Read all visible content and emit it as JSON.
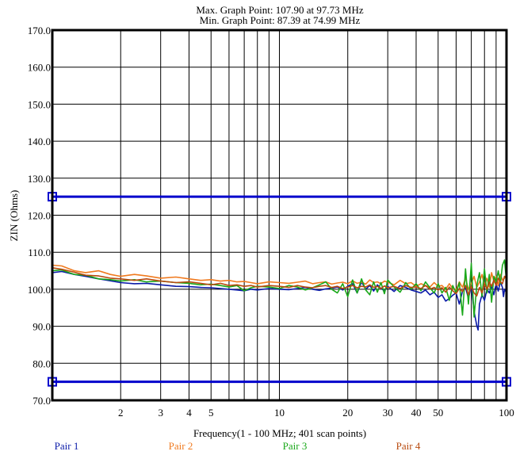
{
  "chart_data": {
    "type": "line",
    "title_lines": [
      "Max. Graph Point: 107.90 at 97.73 MHz",
      "Min. Graph Point: 87.39 at 74.99 MHz"
    ],
    "xlabel": "Frequency(1 - 100 MHz; 401 scan points)",
    "ylabel": "ZIN (Ohms)",
    "x_scale": "log",
    "xlim": [
      1,
      100
    ],
    "ylim": [
      70,
      170
    ],
    "x_ticks": [
      2,
      3,
      4,
      5,
      10,
      20,
      30,
      40,
      50,
      100
    ],
    "x_tick_labels": [
      "2",
      "3",
      "4",
      "5",
      "10",
      "20",
      "30",
      "40",
      "50",
      "100"
    ],
    "y_ticks": [
      70,
      80,
      90,
      100,
      110,
      120,
      130,
      140,
      150,
      160,
      170
    ],
    "y_tick_labels": [
      "70.0",
      "80.0",
      "90.0",
      "100.0",
      "110.0",
      "120.0",
      "130.0",
      "140.0",
      "150.0",
      "160.0",
      "170.0"
    ],
    "grid": true,
    "limit_lines": [
      {
        "y": 125,
        "color": "#0000cc"
      },
      {
        "y": 75,
        "color": "#0000cc"
      }
    ],
    "legend_position": "bottom",
    "series": [
      {
        "name": "Pair 1",
        "color": "#0a1aa8",
        "x": [
          1,
          1.1,
          1.25,
          1.4,
          1.6,
          1.8,
          2,
          2.3,
          2.6,
          3,
          3.5,
          4,
          4.5,
          5,
          5.5,
          6,
          6.5,
          7,
          7.5,
          8,
          9,
          10,
          11,
          12,
          13,
          14,
          15,
          16,
          17,
          18,
          19,
          20,
          21,
          22,
          23,
          24,
          25,
          26,
          27,
          28,
          29,
          30,
          32,
          34,
          36,
          38,
          40,
          42,
          44,
          46,
          48,
          50,
          52,
          54,
          56,
          58,
          60,
          62,
          64,
          66,
          68,
          70,
          72,
          74,
          75,
          76,
          78,
          80,
          82,
          84,
          86,
          88,
          90,
          92,
          94,
          96,
          97,
          98,
          100
        ],
        "y": [
          104.5,
          104.8,
          104.0,
          103.5,
          102.8,
          102.3,
          101.8,
          101.5,
          101.6,
          101.2,
          100.8,
          100.7,
          100.5,
          100.4,
          100.2,
          100.0,
          99.8,
          99.6,
          100.0,
          99.8,
          100.2,
          100.0,
          99.9,
          100.2,
          100.5,
          100.0,
          99.7,
          100.1,
          100.3,
          100.6,
          99.8,
          100.8,
          101.5,
          99.0,
          102.0,
          100.0,
          101.0,
          99.5,
          101.2,
          100.2,
          99.6,
          100.8,
          99.4,
          101.0,
          100.5,
          99.8,
          99.4,
          99.0,
          99.8,
          98.5,
          99.2,
          97.8,
          98.5,
          96.8,
          97.5,
          98.4,
          99.0,
          96.0,
          99.5,
          100.5,
          97.5,
          101.0,
          94.0,
          90.2,
          89.0,
          96.0,
          98.5,
          97.0,
          100.0,
          99.0,
          101.0,
          98.5,
          101.5,
          99.5,
          102.0,
          100.5,
          98.0,
          100.0,
          99.0
        ]
      },
      {
        "name": "Pair 2",
        "color": "#f07a1f",
        "x": [
          1,
          1.1,
          1.25,
          1.4,
          1.6,
          1.8,
          2,
          2.3,
          2.6,
          3,
          3.5,
          4,
          4.5,
          5,
          5.5,
          6,
          6.5,
          7,
          7.5,
          8,
          9,
          10,
          11,
          12,
          13,
          14,
          15,
          16,
          17,
          18,
          19,
          20,
          21,
          22,
          23,
          24,
          25,
          26,
          27,
          28,
          29,
          30,
          32,
          34,
          36,
          38,
          40,
          42,
          44,
          46,
          48,
          50,
          52,
          54,
          56,
          58,
          60,
          62,
          64,
          66,
          68,
          70,
          72,
          74,
          76,
          78,
          80,
          82,
          84,
          86,
          88,
          90,
          92,
          94,
          96,
          98,
          100
        ],
        "y": [
          106.5,
          106.3,
          105.0,
          104.5,
          105.0,
          104.0,
          103.5,
          104.0,
          103.6,
          103.0,
          103.3,
          102.8,
          102.4,
          102.6,
          102.2,
          102.4,
          102.0,
          102.1,
          101.8,
          101.5,
          102.0,
          101.8,
          101.6,
          101.9,
          102.2,
          101.5,
          101.8,
          102.0,
          101.4,
          101.7,
          101.9,
          101.5,
          102.3,
          101.6,
          101.9,
          101.4,
          102.5,
          101.8,
          102.0,
          101.5,
          102.2,
          101.9,
          101.2,
          102.4,
          101.5,
          101.8,
          100.8,
          101.5,
          101.0,
          100.6,
          101.8,
          100.8,
          101.0,
          100.0,
          101.5,
          100.2,
          99.8,
          102.0,
          100.5,
          103.0,
          100.0,
          101.5,
          103.5,
          100.5,
          102.0,
          104.0,
          101.0,
          103.0,
          100.5,
          104.5,
          102.0,
          103.5,
          101.0,
          104.0,
          102.5,
          103.0,
          104.0
        ]
      },
      {
        "name": "Pair 3",
        "color": "#1aa81a",
        "x": [
          1,
          1.1,
          1.25,
          1.4,
          1.6,
          1.8,
          2,
          2.3,
          2.6,
          3,
          3.5,
          4,
          4.5,
          5,
          5.5,
          6,
          6.5,
          7,
          7.5,
          8,
          9,
          10,
          11,
          12,
          13,
          14,
          15,
          16,
          17,
          18,
          19,
          20,
          21,
          22,
          23,
          24,
          25,
          26,
          27,
          28,
          29,
          30,
          32,
          34,
          36,
          38,
          40,
          42,
          44,
          46,
          48,
          50,
          52,
          54,
          56,
          58,
          60,
          62,
          64,
          66,
          68,
          70,
          72,
          74,
          76,
          78,
          80,
          82,
          84,
          86,
          88,
          90,
          92,
          94,
          96,
          98,
          100
        ],
        "y": [
          105.0,
          105.2,
          104.0,
          103.8,
          102.8,
          102.6,
          102.2,
          102.6,
          102.0,
          102.2,
          101.8,
          101.6,
          101.2,
          101.4,
          101.0,
          100.6,
          101.0,
          99.6,
          100.4,
          100.8,
          100.6,
          100.2,
          101.0,
          100.6,
          99.8,
          100.4,
          101.2,
          102.0,
          100.0,
          99.0,
          101.5,
          98.0,
          102.5,
          99.0,
          102.8,
          99.8,
          98.5,
          102.0,
          99.2,
          101.8,
          98.8,
          102.5,
          100.6,
          99.2,
          101.8,
          100.0,
          101.5,
          99.6,
          102.0,
          100.4,
          99.0,
          101.5,
          99.0,
          100.5,
          97.0,
          101.0,
          99.0,
          101.8,
          93.0,
          105.5,
          96.0,
          107.0,
          92.5,
          101.0,
          104.5,
          98.0,
          105.5,
          99.0,
          104.0,
          96.5,
          103.5,
          102.0,
          105.0,
          101.5,
          106.5,
          107.9,
          102.0
        ]
      },
      {
        "name": "Pair 4",
        "color": "#b84a0e",
        "x": [
          1,
          1.1,
          1.25,
          1.4,
          1.6,
          1.8,
          2,
          2.3,
          2.6,
          3,
          3.5,
          4,
          4.5,
          5,
          5.5,
          6,
          6.5,
          7,
          7.5,
          8,
          9,
          10,
          11,
          12,
          13,
          14,
          15,
          16,
          17,
          18,
          19,
          20,
          21,
          22,
          23,
          24,
          25,
          26,
          27,
          28,
          29,
          30,
          32,
          34,
          36,
          38,
          40,
          42,
          44,
          46,
          48,
          50,
          52,
          54,
          56,
          58,
          60,
          62,
          64,
          66,
          68,
          70,
          72,
          74,
          76,
          78,
          80,
          82,
          84,
          86,
          88,
          90,
          92,
          94,
          96,
          98,
          100
        ],
        "y": [
          105.8,
          105.4,
          104.6,
          103.8,
          103.6,
          103.0,
          102.8,
          102.4,
          102.8,
          102.2,
          101.8,
          102.0,
          101.6,
          101.2,
          101.6,
          101.0,
          101.2,
          100.8,
          101.0,
          100.6,
          101.0,
          100.8,
          100.5,
          101.0,
          100.6,
          100.4,
          100.8,
          101.0,
          100.5,
          100.8,
          100.2,
          100.6,
          101.0,
          100.4,
          100.8,
          100.6,
          101.2,
          100.5,
          100.8,
          100.2,
          100.9,
          100.4,
          100.8,
          100.2,
          101.0,
          100.5,
          100.6,
          100.2,
          101.0,
          100.0,
          100.5,
          99.8,
          100.4,
          99.2,
          100.6,
          99.6,
          98.8,
          100.2,
          99.4,
          101.0,
          98.5,
          100.8,
          99.0,
          98.2,
          100.5,
          99.0,
          101.5,
          100.0,
          102.0,
          100.8,
          102.5,
          101.0,
          103.0,
          102.0,
          101.5,
          103.5,
          103.0
        ]
      }
    ]
  }
}
